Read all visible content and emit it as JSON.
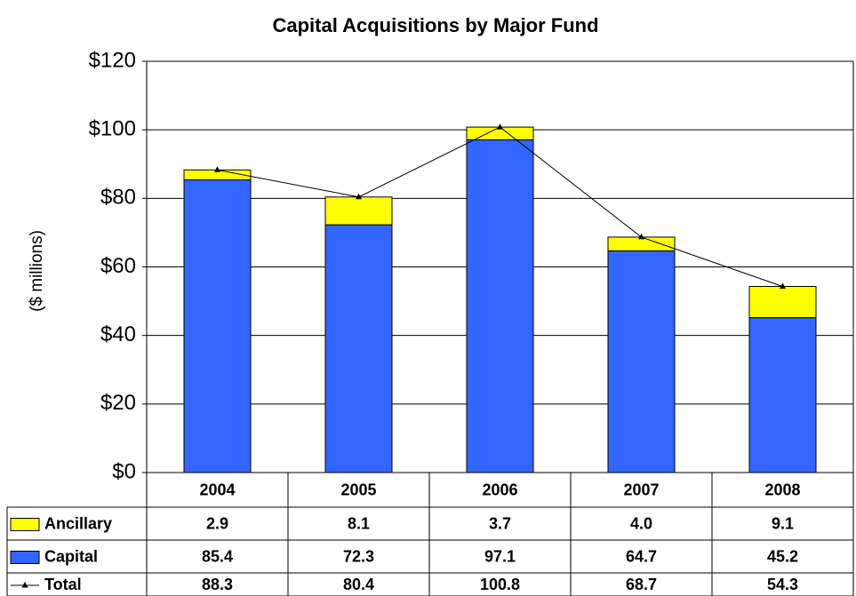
{
  "chart_data": {
    "type": "bar",
    "stacked": true,
    "title": "Capital Acquisitions by Major Fund",
    "y_label": "($ millions)",
    "categories": [
      "2004",
      "2005",
      "2006",
      "2007",
      "2008"
    ],
    "series": [
      {
        "name": "Ancillary",
        "type": "bar",
        "color": "#ffff00",
        "values": [
          2.9,
          8.1,
          3.7,
          4.0,
          9.1
        ],
        "value_labels": [
          "2.9",
          "8.1",
          "3.7",
          "4.0",
          "9.1"
        ]
      },
      {
        "name": "Capital",
        "type": "bar",
        "color": "#3366ff",
        "values": [
          85.4,
          72.3,
          97.1,
          64.7,
          45.2
        ],
        "value_labels": [
          "85.4",
          "72.3",
          "97.1",
          "64.7",
          "45.2"
        ]
      },
      {
        "name": "Total",
        "type": "line",
        "color": "#000000",
        "values": [
          88.3,
          80.4,
          100.8,
          68.7,
          54.3
        ],
        "value_labels": [
          "88.3",
          "80.4",
          "100.8",
          "68.7",
          "54.3"
        ]
      }
    ],
    "ylim": [
      0,
      120
    ],
    "yticks": [
      {
        "value": 0,
        "label": "$0"
      },
      {
        "value": 20,
        "label": "$20"
      },
      {
        "value": 40,
        "label": "$40"
      },
      {
        "value": 60,
        "label": "$60"
      },
      {
        "value": 80,
        "label": "$80"
      },
      {
        "value": 100,
        "label": "$100"
      },
      {
        "value": 120,
        "label": "$120"
      }
    ],
    "grid": true
  }
}
